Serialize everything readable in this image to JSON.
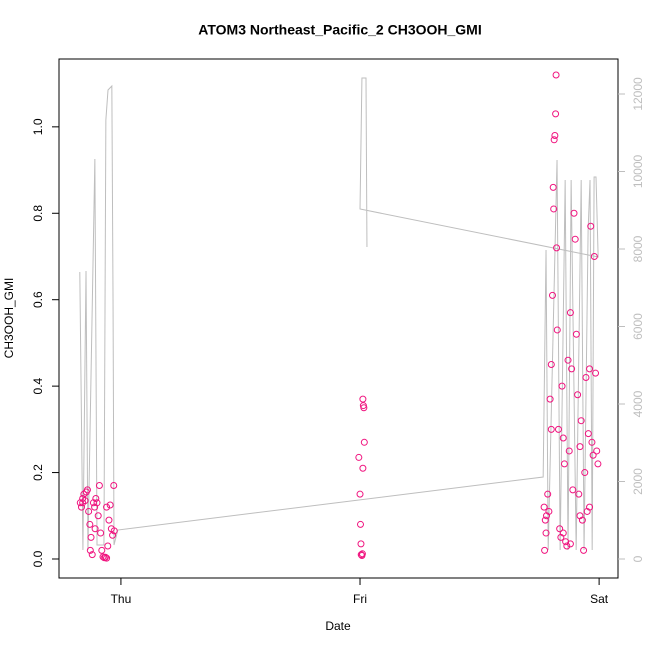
{
  "chart_data": {
    "type": "scatter",
    "title": "ATOM3 Northeast_Pacific_2 CH3OOH_GMI",
    "xlabel": "Date",
    "ylabel": "CH3OOH_GMI",
    "xlim": [
      -0.259,
      2.079
    ],
    "xticks": [
      {
        "value": 0,
        "label": "Thu"
      },
      {
        "value": 1,
        "label": "Fri"
      },
      {
        "value": 2,
        "label": "Sat"
      }
    ],
    "ylim": [
      -0.044,
      1.157
    ],
    "yticks": [
      {
        "value": 0,
        "label": "0.0"
      },
      0.2,
      0.4,
      0.6,
      0.8,
      {
        "value": 1,
        "label": "1.0"
      }
    ],
    "y2lim": [
      -490,
      12903
    ],
    "y2ticks": [
      0,
      2000,
      4000,
      6000,
      8000,
      10000,
      12000
    ],
    "y2color": "#bebebe",
    "series": [
      {
        "type": "scatter",
        "color": "#f0147f",
        "x": [
          -0.17,
          -0.165,
          -0.16,
          -0.155,
          -0.15,
          -0.145,
          -0.14,
          -0.135,
          -0.13,
          -0.128,
          -0.125,
          -0.12,
          -0.115,
          -0.11,
          -0.108,
          -0.105,
          -0.1,
          -0.095,
          -0.09,
          -0.085,
          -0.08,
          -0.075,
          -0.07,
          -0.065,
          -0.06,
          -0.055,
          -0.05,
          -0.045,
          -0.04,
          -0.035,
          -0.03,
          -0.028,
          -0.06,
          -0.16,
          0.995,
          1.0,
          1.002,
          1.004,
          1.005,
          1.008,
          1.01,
          1.012,
          1.014,
          1.016,
          1.018,
          1.012,
          1.77,
          1.772,
          1.775,
          1.778,
          1.78,
          1.785,
          1.79,
          1.795,
          1.8,
          1.805,
          1.808,
          1.81,
          1.812,
          1.815,
          1.818,
          1.82,
          1.822,
          1.825,
          1.83,
          1.835,
          1.84,
          1.845,
          1.85,
          1.855,
          1.86,
          1.865,
          1.87,
          1.875,
          1.88,
          1.885,
          1.89,
          1.895,
          1.9,
          1.905,
          1.91,
          1.915,
          1.92,
          1.925,
          1.93,
          1.935,
          1.94,
          1.945,
          1.95,
          1.955,
          1.96,
          1.965,
          1.97,
          1.975,
          1.98,
          1.985,
          1.99,
          1.995,
          1.8,
          1.85,
          1.88,
          1.92,
          1.96
        ],
        "values": [
          0.13,
          0.12,
          0.14,
          0.15,
          0.135,
          0.155,
          0.16,
          0.11,
          0.08,
          0.02,
          0.05,
          0.01,
          0.13,
          0.12,
          0.07,
          0.14,
          0.13,
          0.1,
          0.17,
          0.06,
          0.02,
          0.005,
          0.003,
          0.004,
          0.002,
          0.03,
          0.09,
          0.125,
          0.07,
          0.055,
          0.17,
          0.065,
          0.12,
          0.13,
          0.235,
          0.15,
          0.08,
          0.035,
          0.01,
          0.008,
          0.012,
          0.37,
          0.355,
          0.35,
          0.27,
          0.21,
          0.12,
          0.02,
          0.09,
          0.06,
          0.1,
          0.15,
          0.11,
          0.37,
          0.45,
          0.61,
          0.86,
          0.81,
          0.97,
          0.98,
          1.03,
          1.12,
          0.72,
          0.53,
          0.3,
          0.07,
          0.05,
          0.4,
          0.28,
          0.22,
          0.04,
          0.03,
          0.46,
          0.25,
          0.57,
          0.44,
          0.16,
          0.8,
          0.74,
          0.52,
          0.38,
          0.15,
          0.1,
          0.32,
          0.09,
          0.02,
          0.2,
          0.42,
          0.11,
          0.29,
          0.12,
          0.77,
          0.27,
          0.24,
          0.7,
          0.43,
          0.25,
          0.22,
          0.3,
          0.06,
          0.035,
          0.26,
          0.44
        ]
      },
      {
        "type": "line",
        "axis": "y2",
        "color": "#bebebe",
        "x": [
          -0.172,
          -0.159,
          -0.146,
          -0.138,
          -0.109,
          -0.1,
          -0.071,
          -0.063,
          -0.054,
          -0.038,
          -0.033,
          -0.029,
          -0.013,
          1.766,
          1.778,
          1.787,
          1.824,
          1.837,
          1.858,
          1.87,
          1.883,
          1.904,
          1.925,
          1.937,
          1.954,
          1.962,
          1.971,
          1.979,
          1.987,
          1.996,
          1.0,
          1.008,
          1.025,
          1.029
        ],
        "values": [
          7406,
          232,
          7432,
          232,
          10323,
          361,
          361,
          11329,
          12103,
          12206,
          6684,
          361,
          748,
          2116,
          7974,
          232,
          10297,
          232,
          9781,
          232,
          9781,
          232,
          9781,
          232,
          8490,
          9781,
          232,
          9858,
          9858,
          7794,
          9032,
          12413,
          12413,
          8052
        ]
      }
    ]
  }
}
